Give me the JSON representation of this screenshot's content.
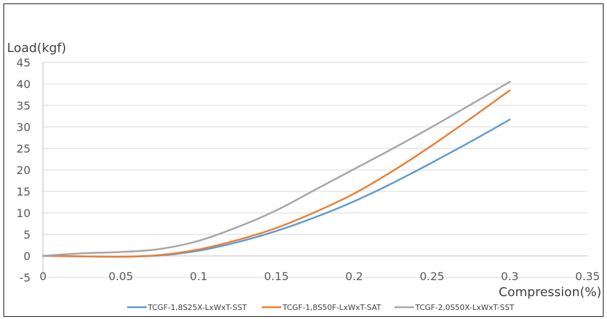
{
  "chart_data": {
    "type": "line",
    "title": "",
    "xlabel": "Compression(%)",
    "ylabel": "Load(kgf)",
    "xlim": [
      0,
      0.35
    ],
    "ylim": [
      -5,
      45
    ],
    "x_ticks": [
      0,
      0.05,
      0.1,
      0.15,
      0.2,
      0.25,
      0.3,
      0.35
    ],
    "x_tick_labels": [
      "0",
      "0.05",
      "0.1",
      "0.15",
      "0.2",
      "0.25",
      "0.3",
      "0.35"
    ],
    "y_ticks": [
      -5,
      0,
      5,
      10,
      15,
      20,
      25,
      30,
      35,
      40,
      45
    ],
    "y_tick_labels": [
      "-5",
      "0",
      "5",
      "10",
      "15",
      "20",
      "25",
      "30",
      "35",
      "40",
      "45"
    ],
    "grid": true,
    "legend_position": "bottom",
    "x": [
      0,
      0.025,
      0.05,
      0.075,
      0.1,
      0.125,
      0.15,
      0.175,
      0.2,
      0.225,
      0.25,
      0.275,
      0.3
    ],
    "series": [
      {
        "name": "TCGF-1,8S25X-LxWxT-SST",
        "color": "#5B9BD5",
        "values": [
          0,
          -0.1,
          -0.2,
          0.1,
          1.2,
          3.2,
          5.8,
          9.0,
          12.7,
          17.0,
          21.7,
          26.6,
          31.7
        ]
      },
      {
        "name": "TCGF-1,8S50F-LxWxT-SAT",
        "color": "#ED7D31",
        "values": [
          0,
          -0.1,
          -0.2,
          0.2,
          1.5,
          3.7,
          6.5,
          10.2,
          14.5,
          19.8,
          25.7,
          32.0,
          38.5
        ]
      },
      {
        "name": "TCGF-2,0S50X-LxWxT-SST",
        "color": "#A5A5A5",
        "values": [
          0,
          0.6,
          0.9,
          1.6,
          3.5,
          6.7,
          10.6,
          15.4,
          20.2,
          25.0,
          30.0,
          35.2,
          40.5
        ]
      }
    ]
  }
}
